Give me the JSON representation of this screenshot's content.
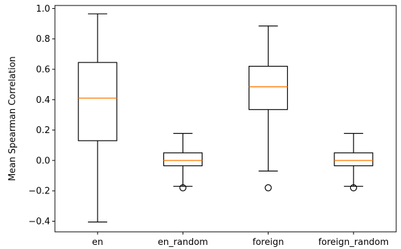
{
  "chart_data": {
    "type": "boxplot",
    "title": "",
    "xlabel": "",
    "ylabel": "Mean Spearman Correlation",
    "ylim": [
      -0.47,
      1.02
    ],
    "yticks": [
      -0.4,
      -0.2,
      0.0,
      0.2,
      0.4,
      0.6,
      0.8,
      1.0
    ],
    "ytick_labels": [
      "−0.4",
      "−0.2",
      "0.0",
      "0.2",
      "0.4",
      "0.6",
      "0.8",
      "1.0"
    ],
    "grid": false,
    "legend": "none",
    "categories": [
      "en",
      "en_random",
      "foreign",
      "foreign_random"
    ],
    "boxes": [
      {
        "category": "en",
        "whisker_low": -0.405,
        "q1": 0.13,
        "median": 0.41,
        "q3": 0.645,
        "whisker_high": 0.965,
        "fliers": []
      },
      {
        "category": "en_random",
        "whisker_low": -0.17,
        "q1": -0.035,
        "median": 0.0,
        "q3": 0.05,
        "whisker_high": 0.178,
        "fliers": [
          -0.18
        ]
      },
      {
        "category": "foreign",
        "whisker_low": -0.07,
        "q1": 0.335,
        "median": 0.485,
        "q3": 0.62,
        "whisker_high": 0.885,
        "fliers": [
          -0.18
        ]
      },
      {
        "category": "foreign_random",
        "whisker_low": -0.17,
        "q1": -0.035,
        "median": 0.0,
        "q3": 0.05,
        "whisker_high": 0.178,
        "fliers": [
          -0.18
        ]
      }
    ],
    "colors": {
      "box": "#000000",
      "median": "#ff7f0e",
      "flier": "#000000",
      "axes": "#000000"
    }
  }
}
